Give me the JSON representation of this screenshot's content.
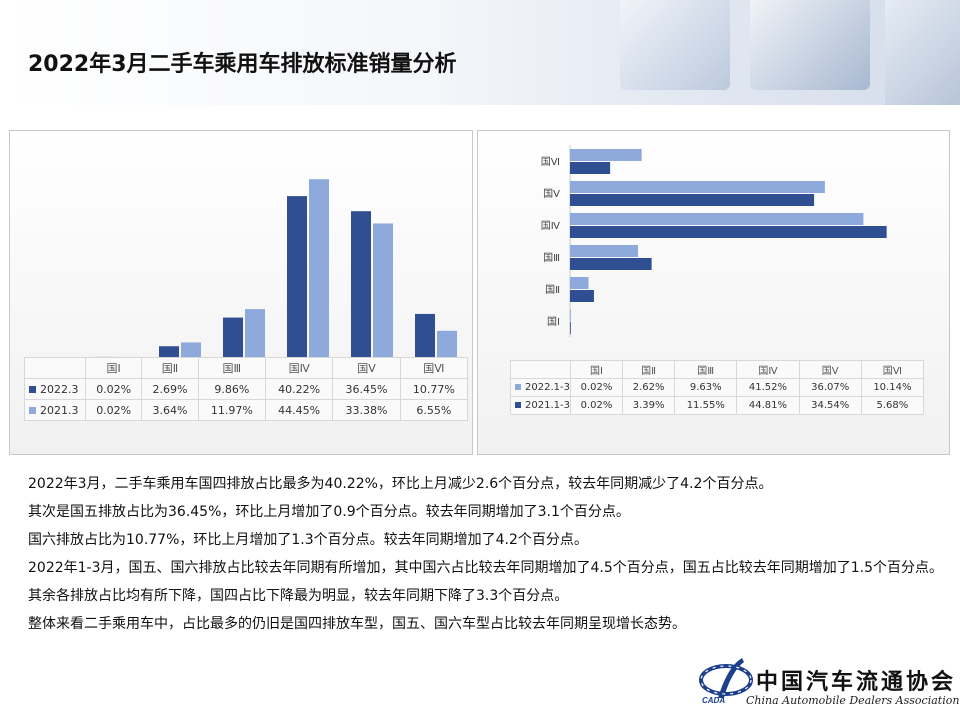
{
  "title": "2022年3月二手车乘用车排放标准销量分析",
  "colors": {
    "dark": "#2f4f92",
    "light": "#8ea9dc"
  },
  "left_chart": {
    "header_row": [
      "国Ⅰ",
      "国Ⅱ",
      "国Ⅲ",
      "国Ⅳ",
      "国Ⅴ",
      "国Ⅵ"
    ],
    "rows": [
      {
        "label": "2022.3",
        "cells": [
          "0.02%",
          "2.69%",
          "9.86%",
          "40.22%",
          "36.45%",
          "10.77%"
        ]
      },
      {
        "label": "2021.3",
        "cells": [
          "0.02%",
          "3.64%",
          "11.97%",
          "44.45%",
          "33.38%",
          "6.55%"
        ]
      }
    ]
  },
  "right_chart": {
    "header_row": [
      "国Ⅰ",
      "国Ⅱ",
      "国Ⅲ",
      "国Ⅳ",
      "国Ⅴ",
      "国Ⅵ"
    ],
    "rows": [
      {
        "label": "2022.1-3",
        "cells": [
          "0.02%",
          "2.62%",
          "9.63%",
          "41.52%",
          "36.07%",
          "10.14%"
        ]
      },
      {
        "label": "2021.1-3",
        "cells": [
          "0.02%",
          "3.39%",
          "11.55%",
          "44.81%",
          "34.54%",
          "5.68%"
        ]
      }
    ]
  },
  "chart_data": [
    {
      "type": "bar",
      "categories": [
        "国Ⅰ",
        "国Ⅱ",
        "国Ⅲ",
        "国Ⅳ",
        "国Ⅴ",
        "国Ⅵ"
      ],
      "series": [
        {
          "name": "2022.3",
          "values": [
            0.02,
            2.69,
            9.86,
            40.22,
            36.45,
            10.77
          ]
        },
        {
          "name": "2021.3",
          "values": [
            0.02,
            3.64,
            11.97,
            44.45,
            33.38,
            6.55
          ]
        }
      ],
      "ylim": [
        0,
        50
      ],
      "grid": false
    },
    {
      "type": "bar",
      "orientation": "horizontal",
      "categories": [
        "国Ⅰ",
        "国Ⅱ",
        "国Ⅲ",
        "国Ⅳ",
        "国Ⅴ",
        "国Ⅵ"
      ],
      "series": [
        {
          "name": "2022.1-3",
          "values": [
            0.02,
            2.62,
            9.63,
            41.52,
            36.07,
            10.14
          ]
        },
        {
          "name": "2021.1-3",
          "values": [
            0.02,
            3.39,
            11.55,
            44.81,
            34.54,
            5.68
          ]
        }
      ],
      "xlim": [
        0,
        45
      ],
      "grid": false
    }
  ],
  "paragraphs": [
    "2022年3月，二手车乘用车国四排放占比最多为40.22%，环比上月减少2.6个百分点，较去年同期减少了4.2个百分点。",
    "其次是国五排放占比为36.45%，环比上月增加了0.9个百分点。较去年同期增加了3.1个百分点。",
    "国六排放占比为10.77%，环比上月增加了1.3个百分点。较去年同期增加了4.2个百分点。",
    "2022年1-3月，国五、国六排放占比较去年同期有所增加，其中国六占比较去年同期增加了4.5个百分点，国五占比较去年同期增加了1.5个百分点。其余各排放占比均有所下降，国四占比下降最为明显，较去年同期下降了3.3个百分点。",
    "整体来看二手乘用车中，占比最多的仍旧是国四排放车型，国五、国六车型占比较去年同期呈现增长态势。"
  ],
  "logo": {
    "cn": "中国汽车流通协会",
    "en": "China Automobile Dealers Association",
    "abbr": "CADA"
  }
}
